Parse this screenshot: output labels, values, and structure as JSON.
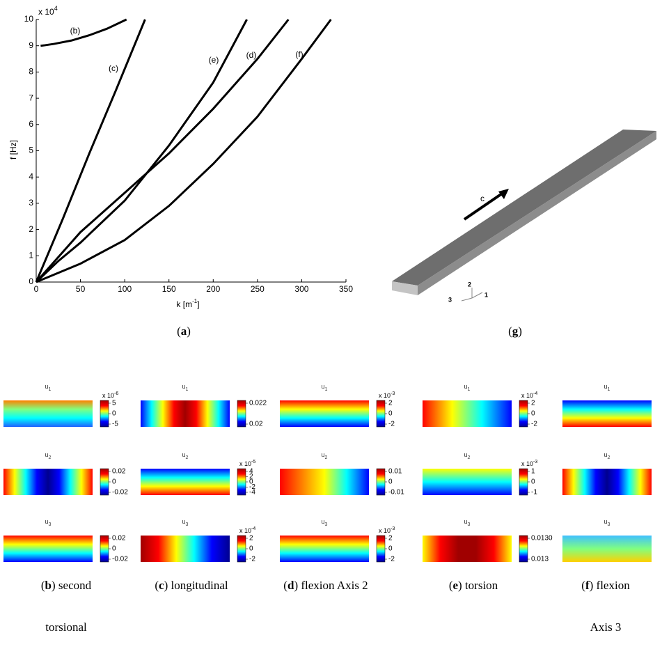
{
  "chart_data": {
    "type": "line",
    "ylabel": "f [Hz]",
    "xlabel": {
      "text": "k [m",
      "sup": "-1",
      "close": "]"
    },
    "multiplier": {
      "base": "x 10",
      "exp": "4"
    },
    "xlim": [
      0,
      350
    ],
    "xticks": [
      0,
      50,
      100,
      150,
      200,
      250,
      300,
      350
    ],
    "ylim": [
      0,
      10
    ],
    "yticks": [
      0,
      1,
      2,
      3,
      4,
      5,
      6,
      7,
      8,
      9,
      10
    ],
    "series": [
      {
        "name": "(b)",
        "color": "#000000",
        "x": [
          5,
          10,
          20,
          40,
          60,
          80,
          102
        ],
        "y": [
          9.0,
          9.02,
          9.07,
          9.2,
          9.4,
          9.65,
          10
        ]
      },
      {
        "name": "(c)",
        "color": "#000000",
        "x": [
          0,
          30,
          60,
          90,
          123
        ],
        "y": [
          0,
          2.4,
          4.9,
          7.3,
          10
        ]
      },
      {
        "name": "(d)",
        "color": "#000000",
        "x": [
          0,
          50,
          100,
          150,
          200,
          250,
          285
        ],
        "y": [
          0,
          1.9,
          3.4,
          4.9,
          6.6,
          8.5,
          10
        ]
      },
      {
        "name": "(e)",
        "color": "#000000",
        "x": [
          0,
          25,
          50,
          100,
          150,
          200,
          238
        ],
        "y": [
          0,
          0.8,
          1.5,
          3.1,
          5.2,
          7.6,
          10
        ]
      },
      {
        "name": "(f)",
        "color": "#000000",
        "x": [
          0,
          50,
          100,
          150,
          200,
          250,
          300,
          333
        ],
        "y": [
          0,
          0.7,
          1.6,
          2.9,
          4.5,
          6.3,
          8.5,
          10
        ]
      }
    ]
  },
  "model": {
    "arrow_label": "c",
    "axis_labels": [
      "2",
      "1",
      "3"
    ]
  },
  "captions": {
    "a": {
      "open": "(",
      "letter": "a",
      "rest": ")"
    },
    "g": {
      "open": "(",
      "letter": "g",
      "rest": ")"
    },
    "b": {
      "open": "(",
      "letter": "b",
      "rest": ") second",
      "line2": "torsional"
    },
    "c": {
      "open": "(",
      "letter": "c",
      "rest": ") longitudinal"
    },
    "d": {
      "open": "(",
      "letter": "d",
      "rest": ") flexion Axis 2"
    },
    "e": {
      "open": "(",
      "letter": "e",
      "rest": ") torsion"
    },
    "f": {
      "open": "(",
      "letter": "f",
      "rest": ") flexion",
      "line2": "Axis 3"
    }
  },
  "panels": [
    [
      {
        "base": "u",
        "sub": "1",
        "ticks": [
          "5",
          "0",
          "-5"
        ],
        "multiplier": {
          "base": "x 10",
          "exp": "-6"
        }
      },
      {
        "base": "u",
        "sub": "2",
        "ticks": [
          "0.02",
          "0",
          "-0.02"
        ]
      },
      {
        "base": "u",
        "sub": "3",
        "ticks": [
          "0.02",
          "0",
          "-0.02"
        ]
      }
    ],
    [
      {
        "base": "u",
        "sub": "1",
        "ticks": [
          "0.022",
          "0.02"
        ]
      },
      {
        "base": "u",
        "sub": "2",
        "ticks": [
          "4",
          "2",
          "0",
          "-2",
          "-4"
        ],
        "multiplier": {
          "base": "x 10",
          "exp": "-5"
        }
      },
      {
        "base": "u",
        "sub": "3",
        "ticks": [
          "2",
          "0",
          "-2"
        ],
        "multiplier": {
          "base": "x 10",
          "exp": "-4"
        }
      }
    ],
    [
      {
        "base": "u",
        "sub": "1",
        "ticks": [
          "2",
          "0",
          "-2"
        ],
        "multiplier": {
          "base": "x 10",
          "exp": "-3"
        }
      },
      {
        "base": "u",
        "sub": "2",
        "ticks": [
          "0.01",
          "0",
          "-0.01"
        ]
      },
      {
        "base": "u",
        "sub": "3",
        "ticks": [
          "2",
          "0",
          "-2"
        ],
        "multiplier": {
          "base": "x 10",
          "exp": "-3"
        }
      }
    ],
    [
      {
        "base": "u",
        "sub": "1",
        "ticks": [
          "2",
          "0",
          "-2"
        ],
        "multiplier": {
          "base": "x 10",
          "exp": "-4"
        }
      },
      {
        "base": "u",
        "sub": "2",
        "ticks": [
          "1",
          "0",
          "-1"
        ],
        "multiplier": {
          "base": "x 10",
          "exp": "-3"
        }
      },
      {
        "base": "u",
        "sub": "3",
        "ticks": [
          "0.0130",
          "0.013"
        ]
      }
    ],
    [
      {
        "base": "u",
        "sub": "1"
      },
      {
        "base": "u",
        "sub": "2"
      },
      {
        "base": "u",
        "sub": "3"
      }
    ]
  ]
}
